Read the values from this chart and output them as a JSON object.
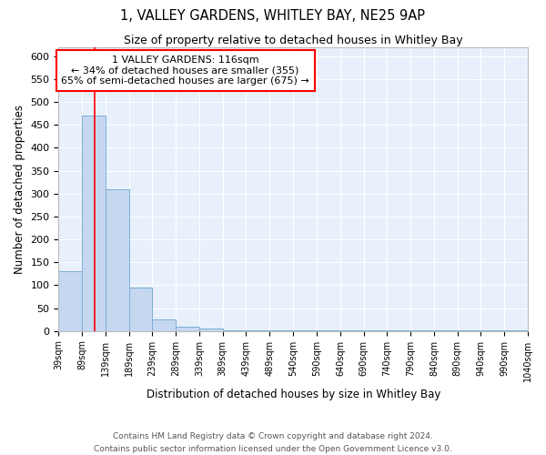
{
  "title1": "1, VALLEY GARDENS, WHITLEY BAY, NE25 9AP",
  "title2": "Size of property relative to detached houses in Whitley Bay",
  "xlabel": "Distribution of detached houses by size in Whitley Bay",
  "ylabel": "Number of detached properties",
  "annotation_line1": "1 VALLEY GARDENS: 116sqm",
  "annotation_line2": "← 34% of detached houses are smaller (355)",
  "annotation_line3": "65% of semi-detached houses are larger (675) →",
  "bar_edges": [
    39,
    89,
    139,
    189,
    239,
    289,
    339,
    389,
    439,
    489,
    540,
    590,
    640,
    690,
    740,
    790,
    840,
    890,
    940,
    990,
    1040
  ],
  "bar_heights": [
    130,
    470,
    310,
    95,
    25,
    10,
    5,
    2,
    2,
    1,
    1,
    1,
    1,
    1,
    1,
    1,
    1,
    1,
    1,
    1
  ],
  "bar_color": "#c5d8f0",
  "bar_edge_color": "#7aafd4",
  "red_line_x": 116,
  "ylim": [
    0,
    620
  ],
  "yticks": [
    0,
    50,
    100,
    150,
    200,
    250,
    300,
    350,
    400,
    450,
    500,
    550,
    600
  ],
  "bg_color": "#e8f0fb",
  "grid_color": "#ffffff",
  "footer_line1": "Contains HM Land Registry data © Crown copyright and database right 2024.",
  "footer_line2": "Contains public sector information licensed under the Open Government Licence v3.0."
}
